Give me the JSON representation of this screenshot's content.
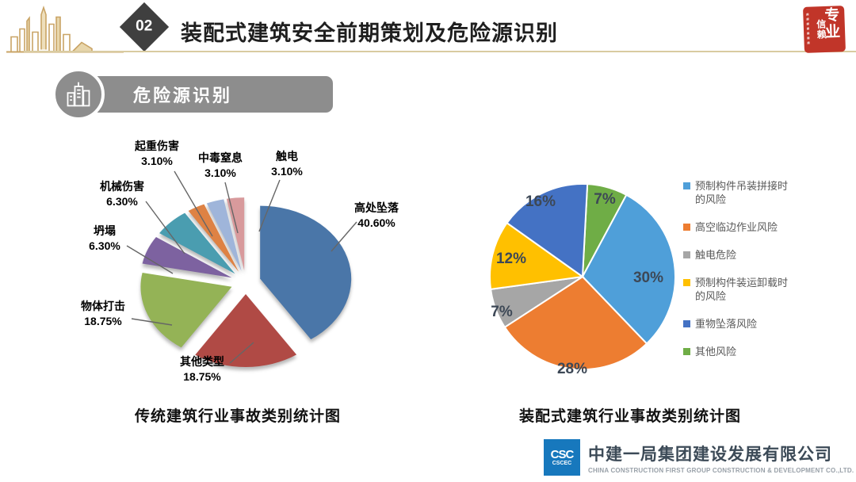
{
  "header": {
    "badge": "02",
    "title": "装配式建筑安全前期策划及危险源识别"
  },
  "seal": {
    "text_main": "专业",
    "text_sub": "信赖"
  },
  "section": {
    "title": "危险源识别"
  },
  "chart_data": [
    {
      "type": "pie",
      "style": "exploded-3d",
      "title": "传统建筑行业事故类别统计图",
      "start_angle_deg": 0,
      "slices": [
        {
          "label": "高处坠落",
          "value": 40.6,
          "display": "40.60%",
          "color": "#4A76A8"
        },
        {
          "label": "其他类型",
          "value": 18.75,
          "display": "18.75%",
          "color": "#B04A45"
        },
        {
          "label": "物体打击",
          "value": 18.75,
          "display": "18.75%",
          "color": "#94B356"
        },
        {
          "label": "坍塌",
          "value": 6.3,
          "display": "6.30%",
          "color": "#7D62A0"
        },
        {
          "label": "机械伤害",
          "value": 6.3,
          "display": "6.30%",
          "color": "#4A9DB0"
        },
        {
          "label": "起重伤害",
          "value": 3.1,
          "display": "3.10%",
          "color": "#DE8244"
        },
        {
          "label": "中毒窒息",
          "value": 3.1,
          "display": "3.10%",
          "color": "#9FB5DA"
        },
        {
          "label": "触电",
          "value": 3.1,
          "display": "3.10%",
          "color": "#D89A9C"
        }
      ]
    },
    {
      "type": "pie",
      "style": "flat",
      "title": "装配式建筑行业事故类别统计图",
      "start_angle_deg": 3,
      "draw_order_clockwise_from_top": [
        5,
        0,
        1,
        2,
        3,
        4
      ],
      "legend_position": "right",
      "slices": [
        {
          "label": "预制构件吊装拼接时的风险",
          "value": 30,
          "display": "30%",
          "color": "#4F9FD9"
        },
        {
          "label": "高空临边作业风险",
          "value": 28,
          "display": "28%",
          "color": "#ED7D31"
        },
        {
          "label": "触电危险",
          "value": 7,
          "display": "7%",
          "color": "#A6A6A6"
        },
        {
          "label": "预制构件装运卸载时的风险",
          "value": 12,
          "display": "12%",
          "color": "#FFC000"
        },
        {
          "label": "重物坠落风险",
          "value": 16,
          "display": "16%",
          "color": "#4472C4"
        },
        {
          "label": "其他风险",
          "value": 7,
          "display": "7%",
          "color": "#6FAD46"
        }
      ]
    }
  ],
  "footer": {
    "logo_text_top": "CSC",
    "logo_text_bottom": "CSCEC",
    "company": "中建一局集团建设发展有限公司",
    "company_en": "CHINA CONSTRUCTION FIRST GROUP CONSTRUCTION & DEVELOPMENT CO.,LTD."
  }
}
